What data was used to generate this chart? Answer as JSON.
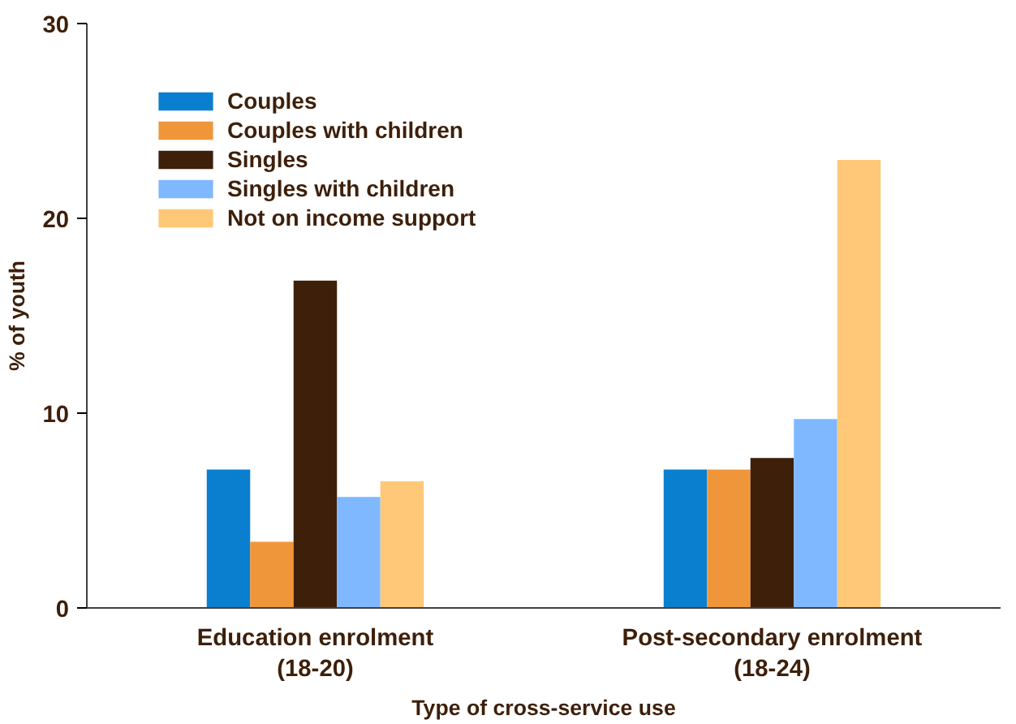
{
  "chart_data": {
    "type": "bar",
    "xlabel": "Type of cross-service use",
    "ylabel": "% of youth",
    "categories": [
      "Education enrolment\n(18-20)",
      "Post-secondary enrolment\n(18-24)"
    ],
    "series": [
      {
        "name": "Couples",
        "color": "#0a7fd0",
        "values": [
          7.1,
          7.1
        ]
      },
      {
        "name": "Couples with children",
        "color": "#f0963a",
        "values": [
          3.4,
          7.1
        ]
      },
      {
        "name": "Singles",
        "color": "#3d1f0a",
        "values": [
          16.8,
          7.7
        ]
      },
      {
        "name": "Singles with children",
        "color": "#7fb8ff",
        "values": [
          5.7,
          9.7
        ]
      },
      {
        "name": "Not on income support",
        "color": "#ffc878",
        "values": [
          6.5,
          23.0
        ]
      }
    ],
    "ylim": [
      0,
      30
    ],
    "yticks": [
      0,
      10,
      20,
      30
    ],
    "grid": false,
    "legend": "top left"
  }
}
